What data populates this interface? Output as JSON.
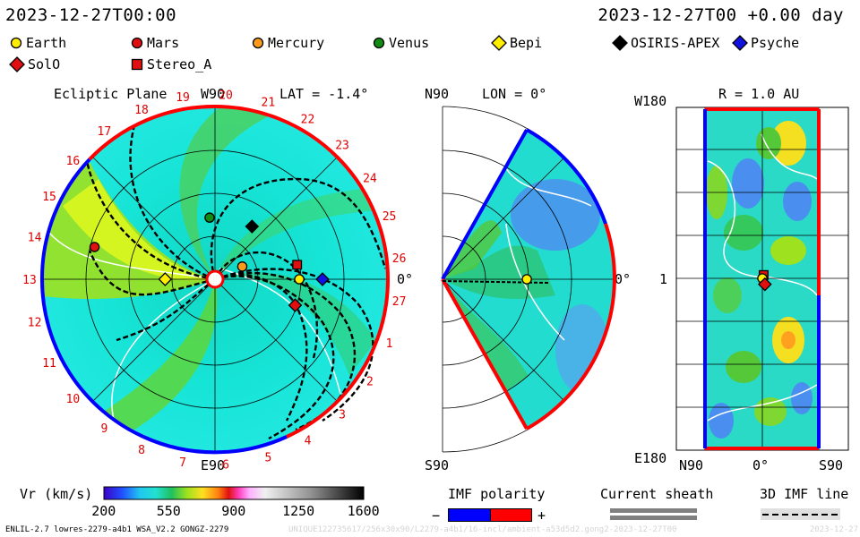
{
  "header": {
    "datetime": "2023-12-27T00:00",
    "relative_time": "2023-12-27T00 +0.00 day"
  },
  "legend": [
    {
      "name": "Earth",
      "marker": "circle",
      "color": "#ffee00"
    },
    {
      "name": "Mars",
      "marker": "circle",
      "color": "#e01010"
    },
    {
      "name": "Mercury",
      "marker": "circle",
      "color": "#ff9a1a"
    },
    {
      "name": "Venus",
      "marker": "circle",
      "color": "#138a13"
    },
    {
      "name": "Bepi",
      "marker": "diamond",
      "color": "#ffee00"
    },
    {
      "name": "OSIRIS-APEX",
      "marker": "diamond",
      "color": "#000000"
    },
    {
      "name": "Psyche",
      "marker": "diamond",
      "color": "#1010e0"
    },
    {
      "name": "SolO",
      "marker": "diamond",
      "color": "#e01010"
    },
    {
      "name": "Stereo_A",
      "marker": "square",
      "color": "#e01010"
    }
  ],
  "chart_data": [
    {
      "type": "polar",
      "title": "Ecliptic Plane",
      "north_label": "W90",
      "south_label": "E90",
      "angle_label": "0°",
      "lat_text": "LAT = -1.4°",
      "carrington_rotation_ticks": [
        "19",
        "20",
        "21",
        "22",
        "23",
        "24",
        "25",
        "26",
        "27",
        "1",
        "2",
        "3",
        "4",
        "5",
        "6",
        "7",
        "8",
        "9",
        "10",
        "11",
        "12",
        "13",
        "14",
        "15",
        "16",
        "17",
        "18"
      ],
      "bodies": [
        {
          "name": "Mars",
          "r_au": 1.45,
          "lon_deg": 165
        },
        {
          "name": "Venus",
          "r_au": 0.72,
          "lon_deg": 95
        },
        {
          "name": "OSIRIS-APEX",
          "r_au": 0.75,
          "lon_deg": 55
        },
        {
          "name": "Mercury",
          "r_au": 0.35,
          "lon_deg": 25
        },
        {
          "name": "Stereo_A",
          "r_au": 0.97,
          "lon_deg": 10
        },
        {
          "name": "Earth",
          "r_au": 0.98,
          "lon_deg": 0
        },
        {
          "name": "Psyche",
          "r_au": 1.25,
          "lon_deg": 0
        },
        {
          "name": "Bepi",
          "r_au": 0.58,
          "lon_deg": 180
        },
        {
          "name": "SolO",
          "r_au": 0.98,
          "lon_deg": -18
        }
      ]
    },
    {
      "type": "meridional",
      "title_left": "N90",
      "title_right": "LON = 0°",
      "bottom_label": "S90",
      "angle_label": "0°",
      "bodies": [
        {
          "name": "Earth",
          "r_au": 0.98,
          "lat_deg": 0
        }
      ]
    },
    {
      "type": "heatmap",
      "title": "R = 1.0 AU",
      "y_top": "W180",
      "y_mid": "1",
      "y_bottom": "E180",
      "x_labels": [
        "N90",
        "0°",
        "S90"
      ],
      "bodies": [
        {
          "name": "Stereo_A",
          "lat_deg": 2,
          "lon_deg": 10
        },
        {
          "name": "Earth",
          "lat_deg": 0,
          "lon_deg": 0
        },
        {
          "name": "SolO",
          "lat_deg": 4,
          "lon_deg": -18
        }
      ]
    },
    {
      "type": "colorbar",
      "label": "Vr (km/s)",
      "ticks": [
        200,
        550,
        900,
        1250,
        1600
      ],
      "range": [
        200,
        1600
      ]
    }
  ],
  "imf": {
    "title": "IMF polarity",
    "minus": "−",
    "plus": "+",
    "minus_color": "#0000ff",
    "plus_color": "#ff0000"
  },
  "current_sheath": {
    "title": "Current sheath"
  },
  "imf_line": {
    "title": "3D IMF line"
  },
  "footer": {
    "left": "ENLIL-2.7 lowres-2279-a4b1 WSA_V2.2 GONGZ-2279",
    "right": "UNIQUE122735617/256x30x90/L2279-a4b1/16-incl/ambient-a53d5d2.gong2-2023-12-27T00",
    "corner": "2023-12-27"
  }
}
